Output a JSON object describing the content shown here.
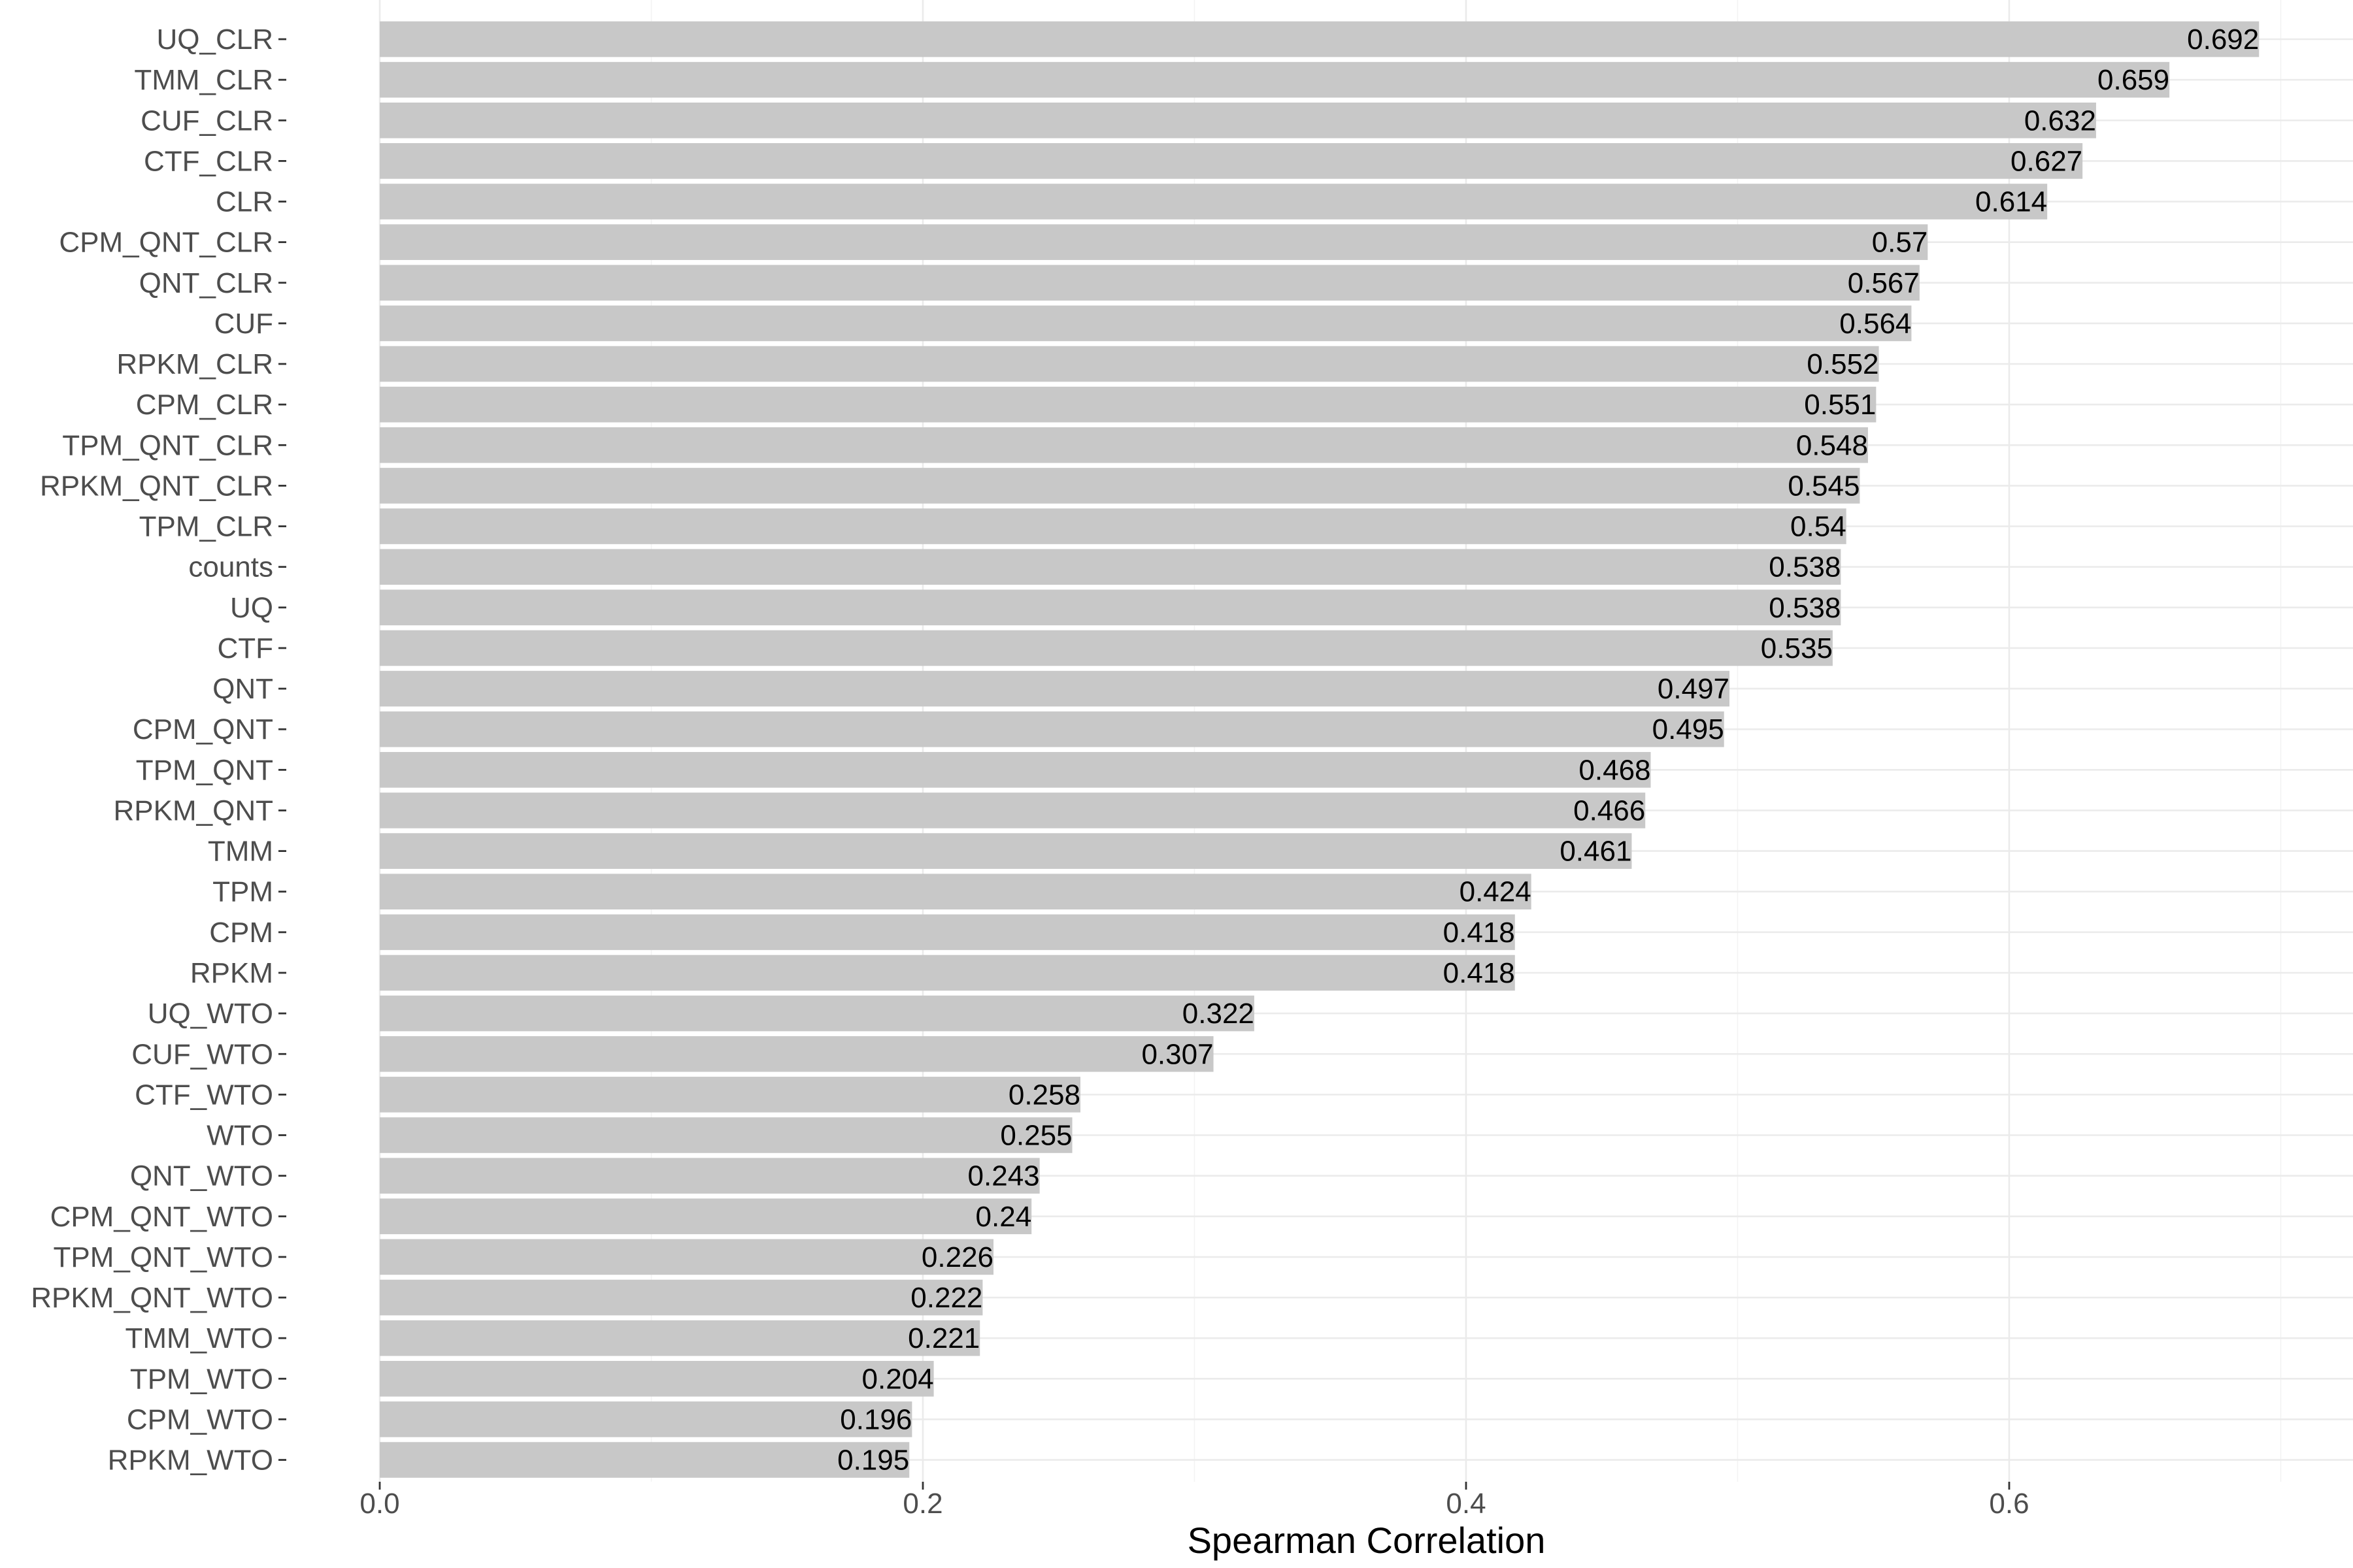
{
  "chart_data": {
    "type": "bar",
    "orientation": "horizontal",
    "categories": [
      "UQ_CLR",
      "TMM_CLR",
      "CUF_CLR",
      "CTF_CLR",
      "CLR",
      "CPM_QNT_CLR",
      "QNT_CLR",
      "CUF",
      "RPKM_CLR",
      "CPM_CLR",
      "TPM_QNT_CLR",
      "RPKM_QNT_CLR",
      "TPM_CLR",
      "counts",
      "UQ",
      "CTF",
      "QNT",
      "CPM_QNT",
      "TPM_QNT",
      "RPKM_QNT",
      "TMM",
      "TPM",
      "CPM",
      "RPKM",
      "UQ_WTO",
      "CUF_WTO",
      "CTF_WTO",
      "WTO",
      "QNT_WTO",
      "CPM_QNT_WTO",
      "TPM_QNT_WTO",
      "RPKM_QNT_WTO",
      "TMM_WTO",
      "TPM_WTO",
      "CPM_WTO",
      "RPKM_WTO"
    ],
    "values": [
      0.692,
      0.659,
      0.632,
      0.627,
      0.614,
      0.57,
      0.567,
      0.564,
      0.552,
      0.551,
      0.548,
      0.545,
      0.54,
      0.538,
      0.538,
      0.535,
      0.497,
      0.495,
      0.468,
      0.466,
      0.461,
      0.424,
      0.418,
      0.418,
      0.322,
      0.307,
      0.258,
      0.255,
      0.243,
      0.24,
      0.226,
      0.222,
      0.221,
      0.204,
      0.196,
      0.195
    ],
    "value_labels": [
      "0.692",
      "0.659",
      "0.632",
      "0.627",
      "0.614",
      "0.57",
      "0.567",
      "0.564",
      "0.552",
      "0.551",
      "0.548",
      "0.545",
      "0.54",
      "0.538",
      "0.538",
      "0.535",
      "0.497",
      "0.495",
      "0.468",
      "0.466",
      "0.461",
      "0.424",
      "0.418",
      "0.418",
      "0.322",
      "0.307",
      "0.258",
      "0.255",
      "0.243",
      "0.24",
      "0.226",
      "0.222",
      "0.221",
      "0.204",
      "0.196",
      "0.195"
    ],
    "title": "",
    "xlabel": "Spearman Correlation",
    "ylabel": "",
    "xlim": [
      0,
      0.7266
    ],
    "x_ticks": [
      0.0,
      0.2,
      0.4,
      0.6
    ],
    "x_tick_labels": [
      "0.0",
      "0.2",
      "0.4",
      "0.6"
    ],
    "grid": true,
    "legend": "none",
    "colors": {
      "bar": "#c8c8c8",
      "background": "#ffffff",
      "grid_major": "#ebebeb",
      "grid_minor": "#f3f3f3",
      "tick_text": "#4d4d4d",
      "label_text": "#000000"
    }
  }
}
